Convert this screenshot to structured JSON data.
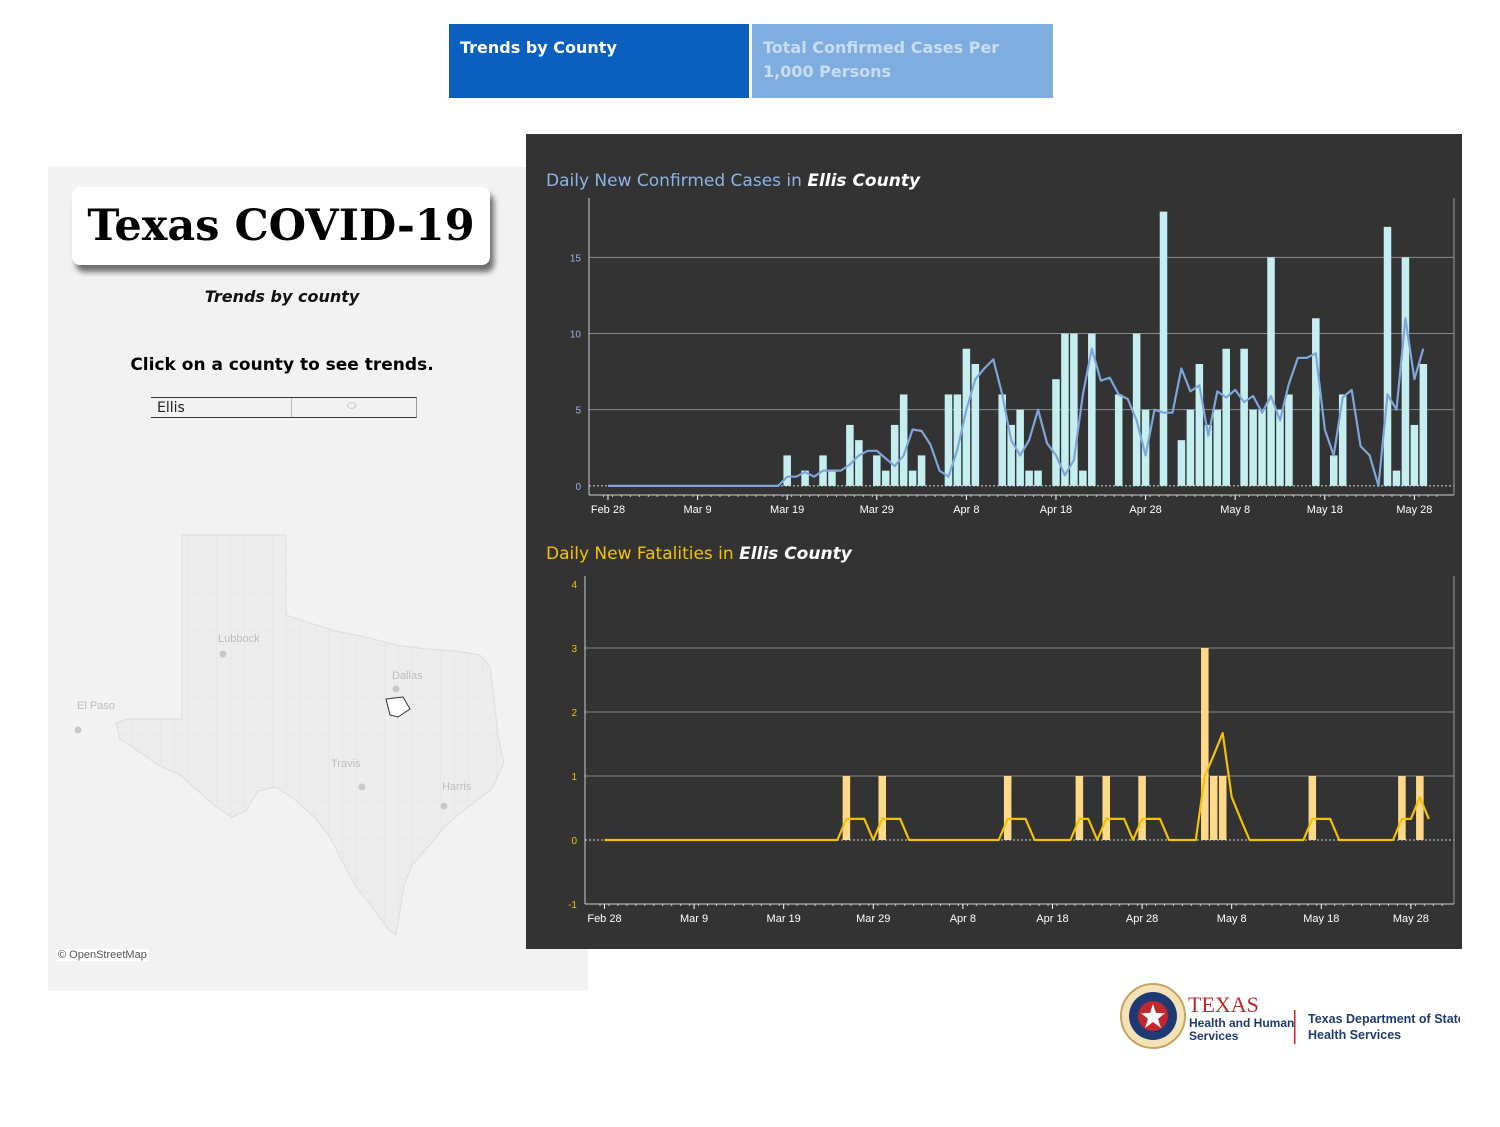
{
  "tabs": [
    {
      "label": "Trends by County",
      "active": true,
      "color": "#0A5FBF"
    },
    {
      "label": "Total Confirmed Cases Per 1,000 Persons",
      "active": false,
      "color": "#7FADE0"
    }
  ],
  "left_panel": {
    "title": "Texas COVID-19",
    "subtitle": "Trends by county",
    "instruction": "Click on a county to see trends.",
    "county_select": {
      "value": "Ellis",
      "icon": "dropdown-icon"
    },
    "map": {
      "cities": [
        "Lubbock",
        "Dallas",
        "El Paso",
        "Travis",
        "Harris"
      ],
      "selected_county": "Ellis",
      "attribution": "© OpenStreetMap"
    }
  },
  "chart_data": [
    {
      "type": "bar",
      "title_prefix": "Daily New Confirmed Cases in ",
      "title_county": "Ellis County",
      "title_color": "#8EB4E3",
      "bar_color": "#C5EEF1",
      "line_color": "#7EA6DA",
      "start_date": "Feb 28",
      "x_tick_labels": [
        "Feb 28",
        "Mar 9",
        "Mar 19",
        "Mar 29",
        "Apr 8",
        "Apr 18",
        "Apr 28",
        "May 8",
        "May 18",
        "May 28"
      ],
      "ylim": [
        -0.6,
        18.5
      ],
      "y_ticks": [
        0,
        5,
        10,
        15
      ],
      "grid": true,
      "values": [
        0,
        0,
        0,
        0,
        0,
        0,
        0,
        0,
        0,
        0,
        0,
        0,
        0,
        0,
        0,
        0,
        0,
        0,
        0,
        0,
        2,
        0,
        1,
        0,
        2,
        1,
        0,
        4,
        3,
        0,
        2,
        1,
        4,
        6,
        1,
        2,
        0,
        0,
        6,
        6,
        9,
        8,
        0,
        0,
        6,
        4,
        5,
        1,
        1,
        0,
        7,
        10,
        10,
        1,
        10,
        0,
        0,
        6,
        0,
        10,
        5,
        0,
        18,
        0,
        3,
        5,
        8,
        4,
        5,
        9,
        0,
        9,
        5,
        5,
        15,
        5,
        6,
        0,
        0,
        11,
        0,
        2,
        6,
        0,
        0,
        0,
        0,
        17,
        1,
        15,
        4,
        8
      ],
      "moving_average": [
        0,
        0,
        0,
        0,
        0,
        0,
        0,
        0,
        0,
        0,
        0,
        0,
        0,
        0,
        0,
        0,
        0,
        0,
        0,
        0,
        0.6,
        0.6,
        0.9,
        0.6,
        1,
        1,
        1,
        1.4,
        2,
        2.3,
        2.3,
        1.8,
        1.3,
        2,
        3.7,
        3.6,
        2.7,
        1,
        0.6,
        2.4,
        5,
        7,
        7.7,
        8.3,
        6,
        3,
        2,
        3,
        5,
        2.8,
        2,
        0.7,
        1.7,
        6,
        9,
        6.9,
        7.1,
        6,
        5.7,
        4.3,
        2,
        5,
        4.8,
        4.8,
        7.7,
        6.2,
        6.6,
        3.3,
        6.2,
        5.8,
        6.3,
        5.5,
        5.9,
        4.8,
        5.9,
        4.3,
        6.7,
        8.4,
        8.4,
        8.7,
        3.7,
        2,
        5.8,
        6.3,
        2.6,
        2,
        0,
        6,
        5,
        11,
        7,
        9
      ]
    },
    {
      "type": "bar",
      "title_prefix": "Daily New Fatalities in ",
      "title_county": "Ellis County",
      "title_color": "#F2C203",
      "bar_color": "#FFD98A",
      "line_color": "#F2C203",
      "start_date": "Feb 28",
      "x_tick_labels": [
        "Feb 28",
        "Mar 9",
        "Mar 19",
        "Mar 29",
        "Apr 8",
        "Apr 18",
        "Apr 28",
        "May 8",
        "May 18",
        "May 28"
      ],
      "ylim": [
        -1,
        4
      ],
      "y_ticks": [
        -1,
        0,
        1,
        2,
        3,
        4
      ],
      "grid": true,
      "values": [
        0,
        0,
        0,
        0,
        0,
        0,
        0,
        0,
        0,
        0,
        0,
        0,
        0,
        0,
        0,
        0,
        0,
        0,
        0,
        0,
        0,
        0,
        0,
        0,
        0,
        0,
        0,
        1,
        0,
        0,
        0,
        1,
        0,
        0,
        0,
        0,
        0,
        0,
        0,
        0,
        0,
        0,
        0,
        0,
        0,
        1,
        0,
        0,
        0,
        0,
        0,
        0,
        0,
        1,
        0,
        0,
        1,
        0,
        0,
        0,
        1,
        0,
        0,
        0,
        0,
        0,
        0,
        3,
        1,
        1,
        0,
        0,
        0,
        0,
        0,
        0,
        0,
        0,
        0,
        1,
        0,
        0,
        0,
        0,
        0,
        0,
        0,
        0,
        0,
        1,
        0,
        1,
        0
      ],
      "moving_average": [
        0,
        0,
        0,
        0,
        0,
        0,
        0,
        0,
        0,
        0,
        0,
        0,
        0,
        0,
        0,
        0,
        0,
        0,
        0,
        0,
        0,
        0,
        0,
        0,
        0,
        0,
        0,
        0.33,
        0.33,
        0.33,
        0,
        0.33,
        0.33,
        0.33,
        0,
        0,
        0,
        0,
        0,
        0,
        0,
        0,
        0,
        0,
        0,
        0.33,
        0.33,
        0.33,
        0,
        0,
        0,
        0,
        0,
        0.33,
        0.33,
        0,
        0.33,
        0.33,
        0.33,
        0,
        0.33,
        0.33,
        0.33,
        0,
        0,
        0,
        0,
        1,
        1.33,
        1.67,
        0.67,
        0.33,
        0,
        0,
        0,
        0,
        0,
        0,
        0,
        0.33,
        0.33,
        0.33,
        0,
        0,
        0,
        0,
        0,
        0,
        0,
        0.33,
        0.33,
        0.67,
        0.33
      ]
    }
  ],
  "logo": {
    "agency_big": "TEXAS",
    "agency_line1": "Health and Human",
    "agency_line2": "Services",
    "dshs_line1": "Texas Department of State",
    "dshs_line2": "Health Services",
    "red": "#C1272D",
    "navy": "#1F3A73"
  }
}
